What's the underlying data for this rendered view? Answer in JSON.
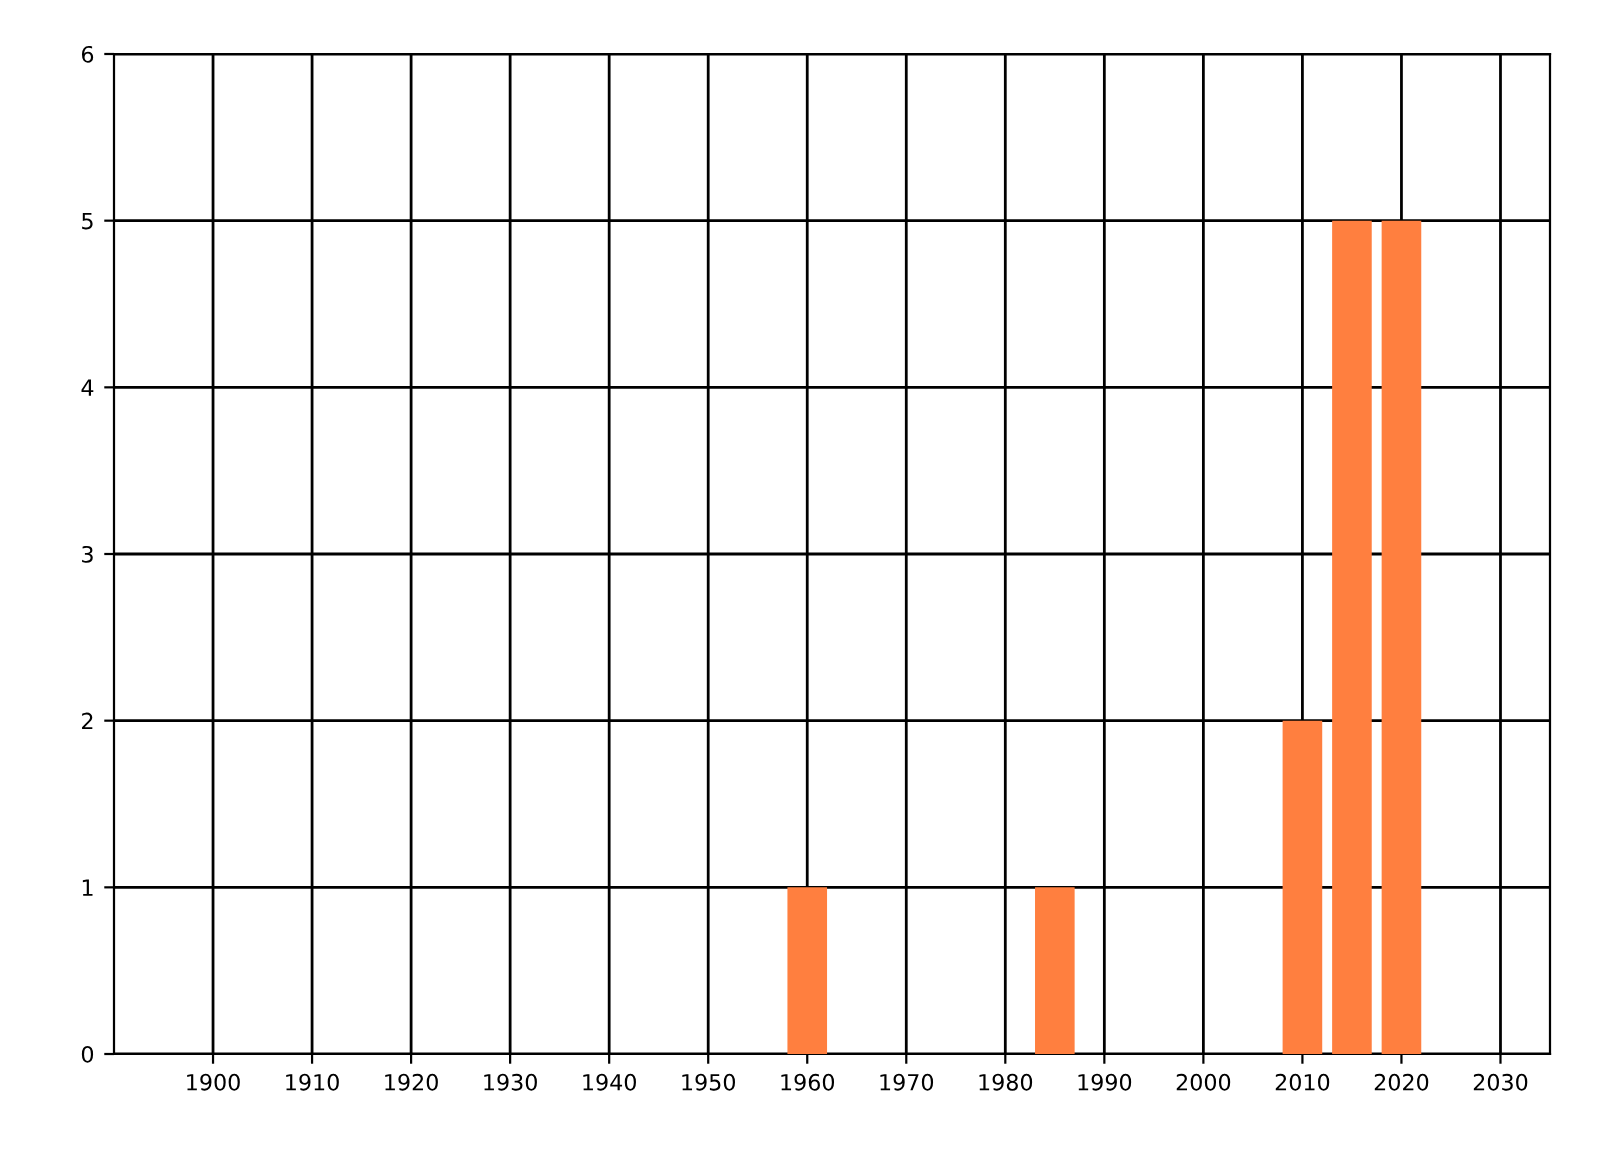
{
  "chart_data": {
    "type": "bar",
    "x": [
      1960,
      1985,
      2010,
      2015,
      2020
    ],
    "values": [
      1,
      1,
      2,
      5,
      5
    ],
    "color": "#ff7f3f",
    "xlim": [
      1890,
      2035
    ],
    "xticks": [
      1900,
      1910,
      1920,
      1930,
      1940,
      1950,
      1960,
      1970,
      1980,
      1990,
      2000,
      2010,
      2020,
      2030
    ],
    "ylim": [
      0,
      6
    ],
    "yticks": [
      0,
      1,
      2,
      3,
      4,
      5,
      6
    ],
    "grid": true
  }
}
